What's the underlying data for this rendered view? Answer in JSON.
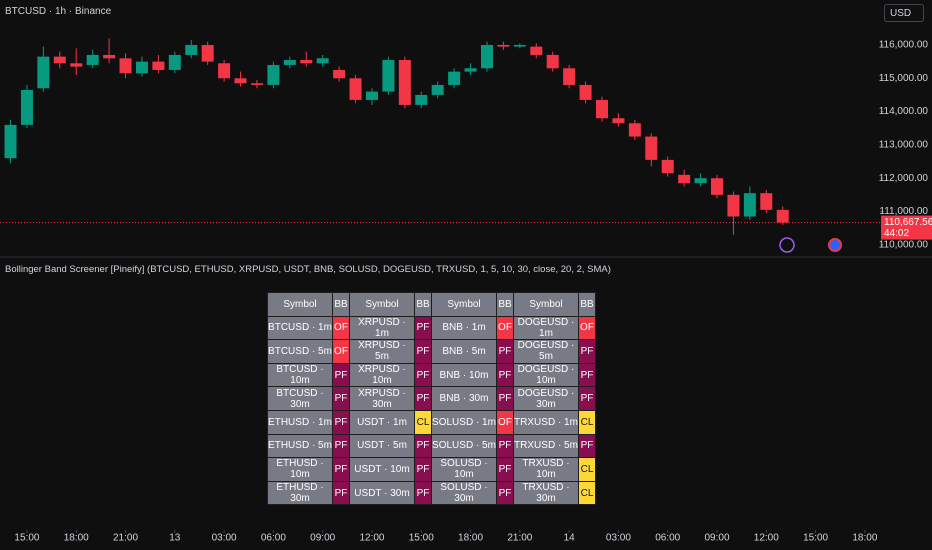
{
  "header": {
    "title": "BTCUSD · 1h · Binance",
    "currency": "USD"
  },
  "chart_data": {
    "type": "candlestick",
    "x": [
      -1,
      0,
      1,
      2,
      3,
      4,
      5,
      6,
      7,
      8,
      9,
      10,
      11,
      12,
      13,
      14,
      15,
      16,
      17,
      18,
      19,
      20,
      21,
      22,
      23,
      24,
      25,
      26,
      27,
      28,
      29,
      30,
      31,
      32,
      33,
      34,
      35,
      36,
      37,
      38,
      39,
      40,
      41,
      42,
      43,
      44,
      45,
      46
    ],
    "open": [
      112600,
      113600,
      114700,
      115650,
      115450,
      115400,
      115700,
      115600,
      115150,
      115500,
      115250,
      115700,
      116000,
      115450,
      115000,
      114850,
      114800,
      115400,
      115550,
      115450,
      115250,
      115000,
      114350,
      114600,
      115550,
      114200,
      114500,
      114800,
      115200,
      115300,
      116000,
      115950,
      115950,
      115700,
      115300,
      114800,
      114350,
      113800,
      113650,
      113250,
      112550,
      112100,
      111850,
      112000,
      111500,
      110850,
      111550,
      111050
    ],
    "high": [
      113750,
      114800,
      115950,
      115800,
      115900,
      115850,
      116200,
      115750,
      115650,
      115700,
      115800,
      116150,
      116100,
      115550,
      115200,
      114950,
      115500,
      115650,
      115800,
      115700,
      115350,
      115100,
      114700,
      115650,
      115650,
      114600,
      114900,
      115300,
      115450,
      116100,
      116100,
      116050,
      116050,
      115800,
      115400,
      114900,
      114450,
      113950,
      113750,
      113350,
      112650,
      112250,
      112150,
      112100,
      111600,
      111750,
      111650,
      111150
    ],
    "low": [
      112450,
      113500,
      114600,
      115300,
      115100,
      115300,
      115450,
      115000,
      115050,
      115150,
      115150,
      115600,
      115400,
      114900,
      114750,
      114700,
      114700,
      115300,
      115350,
      115350,
      114900,
      114250,
      114200,
      114500,
      114100,
      114100,
      114400,
      114700,
      115100,
      115200,
      115850,
      115900,
      115600,
      115200,
      114700,
      114250,
      113700,
      113550,
      113150,
      112350,
      112050,
      111750,
      111750,
      111400,
      110300,
      110750,
      110950,
      110600
    ],
    "close": [
      113600,
      114650,
      115650,
      115450,
      115350,
      115700,
      115600,
      115150,
      115500,
      115250,
      115700,
      116000,
      115500,
      115000,
      114850,
      114800,
      115400,
      115550,
      115450,
      115600,
      115000,
      114350,
      114600,
      115550,
      114200,
      114500,
      114800,
      115200,
      115300,
      116000,
      115950,
      116000,
      115700,
      115300,
      114800,
      114350,
      113800,
      113650,
      113250,
      112550,
      112150,
      111850,
      112000,
      111500,
      110850,
      111550,
      111050,
      110667.56
    ],
    "up_color": "#089981",
    "down_color": "#f23645",
    "xlim": [
      -1.64,
      51.92
    ],
    "ylim": [
      109634,
      117350
    ],
    "xticks": [
      {
        "value": 0,
        "label": "15:00"
      },
      {
        "value": 3,
        "label": "18:00"
      },
      {
        "value": 6,
        "label": "21:00"
      },
      9,
      {
        "value": 12,
        "label": "03:00"
      },
      {
        "value": 15,
        "label": "06:00"
      },
      {
        "value": 18,
        "label": "09:00"
      },
      {
        "value": 21,
        "label": "12:00"
      },
      {
        "value": 24,
        "label": "15:00"
      },
      {
        "value": 27,
        "label": "18:00"
      },
      {
        "value": 30,
        "label": "21:00"
      },
      {
        "value": 33,
        "label": "14"
      },
      {
        "value": 36,
        "label": "03:00"
      },
      {
        "value": 39,
        "label": "06:00"
      },
      {
        "value": 42,
        "label": "09:00"
      },
      {
        "value": 45,
        "label": "12:00"
      },
      {
        "value": 48,
        "label": "15:00"
      },
      {
        "value": 51,
        "label": "18:00"
      }
    ],
    "xtick_first_label": "13",
    "yticks": [
      {
        "value": 110000,
        "label": "110,000.00"
      },
      {
        "value": 111000,
        "label": "111,000.00"
      },
      {
        "value": 112000,
        "label": "112,000.00"
      },
      {
        "value": 113000,
        "label": "113,000.00"
      },
      {
        "value": 114000,
        "label": "114,000.00"
      },
      {
        "value": 115000,
        "label": "115,000.00"
      },
      {
        "value": 116000,
        "label": "116,000.00"
      }
    ],
    "last_price": {
      "value": 110667.56,
      "label": "110,667.56"
    },
    "countdown": "44:02"
  },
  "indicator": {
    "title": "Bollinger Band Screener [Pineify] (BTCUSD, ETHUSD, XRPUSD, USDT, BNB, SOLUSD, DOGEUSD, TRXUSD, 1, 5, 10, 30, close, 20, 2, SMA)"
  },
  "table": {
    "header": [
      "Symbol",
      "BB",
      "Symbol",
      "BB",
      "Symbol",
      "BB",
      "Symbol",
      "BB"
    ],
    "status_colors": {
      "OF": "#f23645",
      "PF": "#880e4f",
      "CL": "#fdd835"
    },
    "rows": [
      [
        "BTCUSD · 1m",
        "OF",
        "XRPUSD · 1m",
        "PF",
        "BNB · 1m",
        "OF",
        "DOGEUSD · 1m",
        "OF"
      ],
      [
        "BTCUSD · 5m",
        "OF",
        "XRPUSD · 5m",
        "PF",
        "BNB · 5m",
        "PF",
        "DOGEUSD · 5m",
        "PF"
      ],
      [
        "BTCUSD · 10m",
        "PF",
        "XRPUSD · 10m",
        "PF",
        "BNB · 10m",
        "PF",
        "DOGEUSD · 10m",
        "PF"
      ],
      [
        "BTCUSD · 30m",
        "PF",
        "XRPUSD · 30m",
        "PF",
        "BNB · 30m",
        "PF",
        "DOGEUSD · 30m",
        "PF"
      ],
      [
        "ETHUSD · 1m",
        "PF",
        "USDT · 1m",
        "CL",
        "SOLUSD · 1m",
        "OF",
        "TRXUSD · 1m",
        "CL"
      ],
      [
        "ETHUSD · 5m",
        "PF",
        "USDT · 5m",
        "PF",
        "SOLUSD · 5m",
        "PF",
        "TRXUSD · 5m",
        "PF"
      ],
      [
        "ETHUSD · 10m",
        "PF",
        "USDT · 10m",
        "PF",
        "SOLUSD · 10m",
        "PF",
        "TRXUSD · 10m",
        "CL"
      ],
      [
        "ETHUSD · 30m",
        "PF",
        "USDT · 30m",
        "PF",
        "SOLUSD · 30m",
        "PF",
        "TRXUSD · 30m",
        "CL"
      ]
    ]
  }
}
